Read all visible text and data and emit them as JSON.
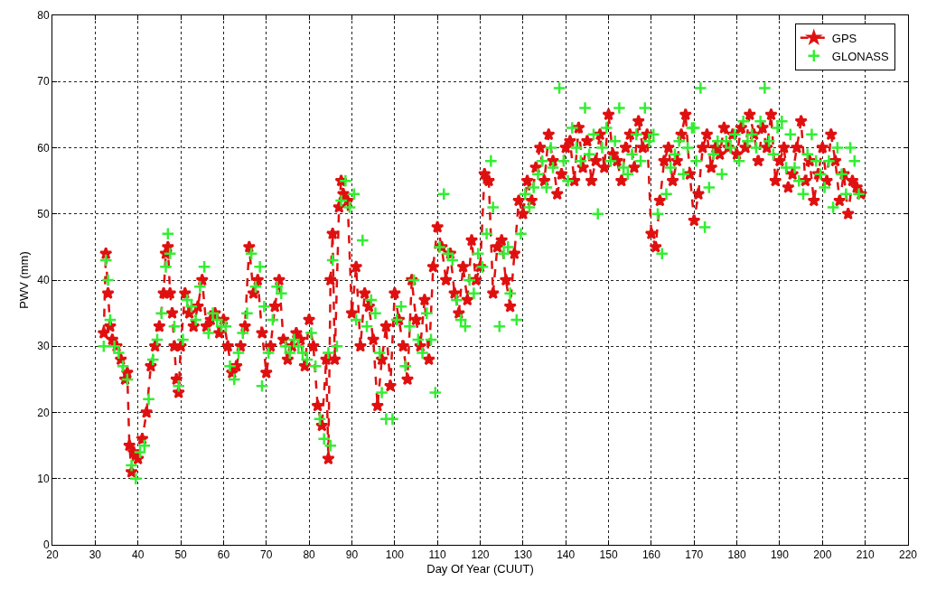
{
  "chart_data": {
    "type": "line",
    "xlabel": "Day Of Year (CUUT)",
    "ylabel": "PWV (mm)",
    "xlim": [
      20,
      220
    ],
    "ylim": [
      0,
      80
    ],
    "xticks": [
      20,
      30,
      40,
      50,
      60,
      70,
      80,
      90,
      100,
      110,
      120,
      130,
      140,
      150,
      160,
      170,
      180,
      190,
      200,
      210,
      220
    ],
    "yticks": [
      0,
      10,
      20,
      30,
      40,
      50,
      60,
      70,
      80
    ],
    "grid": true,
    "legend": "top right",
    "series": [
      {
        "name": "GPS",
        "color": "#e01010",
        "marker": "star",
        "line_style": "dashed",
        "x": [
          32,
          32.5,
          33,
          33.5,
          34,
          35,
          36,
          37,
          37.5,
          38,
          38.5,
          39,
          40,
          41,
          42,
          43,
          44,
          45,
          46,
          46.5,
          47,
          47.5,
          48,
          48.5,
          49,
          49.5,
          50,
          51,
          52,
          53,
          54,
          55,
          56,
          57,
          58,
          59,
          60,
          61,
          62,
          63,
          64,
          65,
          66,
          67,
          68,
          69,
          70,
          71,
          72,
          73,
          74,
          75,
          76,
          77,
          78,
          79,
          80,
          81,
          82,
          83,
          84,
          84.5,
          85,
          85.5,
          86,
          87,
          87.5,
          88,
          89,
          90,
          91,
          92,
          93,
          94,
          95,
          96,
          97,
          98,
          99,
          100,
          101,
          102,
          103,
          104,
          105,
          106,
          107,
          108,
          109,
          110,
          111,
          112,
          113,
          114,
          115,
          116,
          117,
          118,
          119,
          120,
          121,
          122,
          123,
          124,
          125,
          126,
          127,
          128,
          129,
          130,
          131,
          132,
          133,
          134,
          135,
          136,
          137,
          138,
          139,
          140,
          141,
          142,
          143,
          144,
          145,
          146,
          147,
          148,
          149,
          150,
          151,
          152,
          153,
          154,
          155,
          156,
          157,
          158,
          159,
          160,
          161,
          162,
          163,
          164,
          165,
          166,
          167,
          168,
          169,
          170,
          171,
          172,
          173,
          174,
          175,
          176,
          177,
          178,
          179,
          180,
          181,
          182,
          183,
          184,
          185,
          186,
          187,
          188,
          189,
          190,
          191,
          192,
          193,
          194,
          195,
          196,
          197,
          198,
          199,
          200,
          201,
          202,
          203,
          204,
          205,
          206,
          207,
          208,
          209
        ],
        "values": [
          32,
          44,
          38,
          33,
          31,
          30,
          28,
          25,
          26,
          15,
          11,
          14,
          13,
          16,
          20,
          27,
          30,
          33,
          38,
          44,
          45,
          38,
          35,
          30,
          25,
          23,
          30,
          38,
          35,
          33,
          36,
          40,
          33,
          34,
          35,
          32,
          34,
          30,
          26,
          27,
          30,
          33,
          45,
          38,
          40,
          32,
          26,
          30,
          36,
          40,
          31,
          28,
          30,
          32,
          31,
          27,
          34,
          30,
          21,
          18,
          28,
          13,
          40,
          47,
          28,
          51,
          55,
          53,
          52,
          35,
          42,
          30,
          38,
          36,
          31,
          21,
          28,
          33,
          24,
          38,
          34,
          30,
          25,
          40,
          34,
          30,
          37,
          28,
          42,
          48,
          45,
          40,
          44,
          38,
          35,
          42,
          37,
          46,
          40,
          42,
          56,
          55,
          38,
          45,
          46,
          40,
          36,
          44,
          52,
          50,
          55,
          52,
          57,
          60,
          55,
          62,
          58,
          53,
          56,
          60,
          61,
          55,
          63,
          57,
          61,
          55,
          58,
          62,
          57,
          65,
          59,
          58,
          55,
          60,
          62,
          57,
          64,
          60,
          62,
          47,
          45,
          52,
          58,
          60,
          55,
          58,
          62,
          65,
          56,
          49,
          53,
          60,
          62,
          57,
          60,
          59,
          63,
          60,
          62,
          59,
          63,
          60,
          65,
          62,
          58,
          63,
          60,
          65,
          55,
          58,
          60,
          54,
          56,
          60,
          64,
          55,
          58,
          52,
          56,
          60,
          55,
          62,
          58,
          52,
          56,
          50,
          55,
          54,
          53
        ]
      },
      {
        "name": "GLONASS",
        "type": "scatter",
        "color": "#33ee33",
        "marker": "cross",
        "x": [
          32,
          32.5,
          33,
          33.5,
          34.5,
          35.5,
          36.5,
          37.5,
          38.5,
          39.5,
          40.5,
          41.5,
          42.5,
          43.5,
          44.5,
          45.5,
          46.5,
          47,
          47.5,
          48.5,
          49.5,
          50.5,
          51.5,
          52.5,
          53.5,
          54.5,
          55.5,
          56.5,
          57.5,
          58.5,
          59.5,
          60.5,
          61.5,
          62.5,
          63.5,
          64.5,
          65.5,
          66.5,
          67.5,
          68.5,
          69,
          69.5,
          70.5,
          71.5,
          72.5,
          73.5,
          74.5,
          75.5,
          76.5,
          77.5,
          78.5,
          79.5,
          80.5,
          81.5,
          82.5,
          83.5,
          84.5,
          85,
          85.5,
          86.5,
          87.5,
          88.5,
          89.5,
          90.5,
          91,
          92.5,
          93.5,
          94.5,
          95.5,
          96.5,
          97,
          98,
          99.5,
          100.5,
          101.5,
          102.5,
          103.5,
          104.5,
          105.5,
          106.5,
          107.5,
          108.5,
          109.5,
          110.5,
          111.5,
          112.5,
          113.5,
          114.5,
          115.5,
          116.5,
          117.5,
          118.5,
          119.5,
          120.5,
          121.5,
          122.5,
          123,
          124.5,
          125.5,
          126.5,
          127,
          128.5,
          129.5,
          130.5,
          131.5,
          132.5,
          133.5,
          134.5,
          135.5,
          136.5,
          137,
          138.5,
          139.5,
          140.5,
          141.5,
          142.5,
          143.5,
          144.5,
          145.5,
          146.5,
          147.5,
          148.5,
          149.5,
          150.5,
          151.5,
          152.5,
          153.5,
          154.5,
          155.5,
          156.5,
          157.5,
          158.5,
          159.5,
          160.5,
          161.5,
          162.5,
          163.5,
          164.5,
          165.5,
          166.5,
          167.5,
          168.5,
          169.5,
          170,
          170.5,
          171.5,
          172.5,
          173.5,
          174.5,
          175.5,
          176.5,
          177.5,
          178.5,
          179.5,
          180.5,
          181.5,
          182.5,
          183.5,
          184.5,
          185.5,
          186.5,
          187.5,
          188.5,
          189.5,
          190.5,
          191.5,
          192.5,
          193.5,
          194.5,
          195.5,
          196.5,
          197.5,
          198.5,
          199.5,
          200.5,
          201.5,
          202.5,
          203.5,
          204.5,
          205.5,
          206.5,
          207.5,
          208.5
        ],
        "values": [
          30,
          43,
          40,
          34,
          30,
          29,
          27,
          25,
          12,
          10,
          14,
          15,
          22,
          28,
          31,
          35,
          42,
          47,
          44,
          33,
          24,
          31,
          37,
          36,
          34,
          39,
          42,
          32,
          35,
          34,
          33,
          33,
          27,
          25,
          29,
          32,
          35,
          44,
          39,
          42,
          24,
          36,
          29,
          34,
          39,
          38,
          30,
          29,
          31,
          30,
          29,
          28,
          32,
          27,
          19,
          16,
          29,
          15,
          43,
          30,
          52,
          55,
          51,
          53,
          34,
          46,
          33,
          37,
          35,
          29,
          23,
          19,
          19,
          34,
          36,
          27,
          33,
          40,
          31,
          29,
          35,
          31,
          23,
          45,
          53,
          44,
          43,
          37,
          34,
          33,
          40,
          38,
          44,
          42,
          47,
          58,
          51,
          33,
          44,
          45,
          38,
          34,
          47,
          53,
          51,
          54,
          56,
          58,
          54,
          60,
          57,
          69,
          58,
          55,
          63,
          60,
          58,
          66,
          59,
          62,
          50,
          60,
          63,
          58,
          61,
          66,
          57,
          56,
          59,
          62,
          58,
          66,
          61,
          62,
          50,
          44,
          53,
          57,
          59,
          61,
          56,
          60,
          63,
          63,
          58,
          69,
          48,
          54,
          59,
          61,
          56,
          61,
          60,
          62,
          58,
          64,
          61,
          62,
          60,
          64,
          69,
          61,
          59,
          63,
          64,
          57,
          62,
          57,
          55,
          53,
          59,
          62,
          58,
          56,
          54,
          58,
          51,
          60,
          56,
          53,
          60,
          58,
          53
        ]
      }
    ]
  }
}
